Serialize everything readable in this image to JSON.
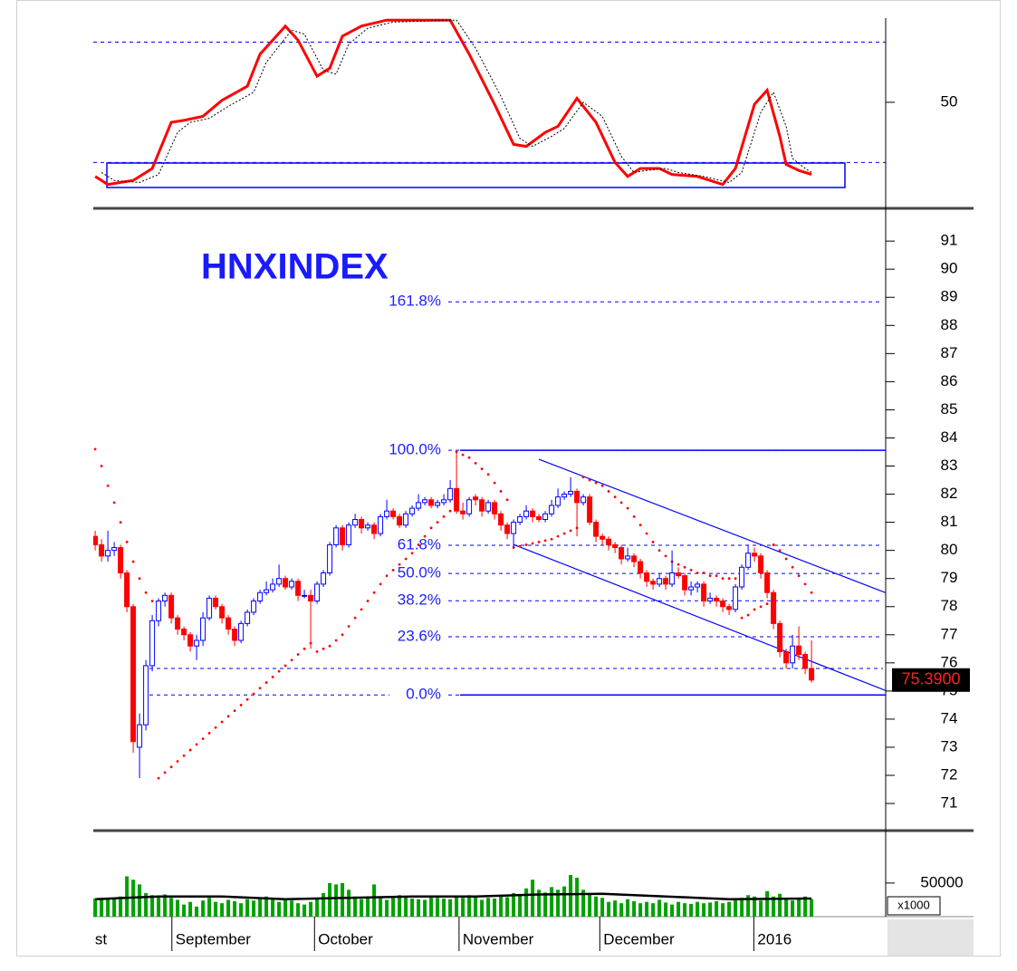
{
  "chart_data": [
    {
      "type": "oscillator",
      "ylim": [
        -2,
        92
      ],
      "yticks": [
        50
      ],
      "reference_lines": [
        80,
        20
      ],
      "reference_color": "#0000ff",
      "series": [
        {
          "color": "#ff0000",
          "x": [
            0,
            2,
            6,
            9,
            12,
            14,
            17,
            20,
            24,
            26,
            30,
            32,
            35,
            37,
            39,
            42,
            46,
            56,
            59,
            63,
            66,
            68,
            71,
            73,
            76,
            79,
            82,
            84,
            86,
            89,
            91,
            95,
            99,
            101,
            104,
            106,
            108,
            109,
            111,
            113
          ],
          "values": [
            13,
            9,
            11,
            17,
            40,
            41,
            43,
            51,
            58,
            74,
            88,
            81,
            63,
            67,
            83,
            88,
            91,
            91,
            74,
            49,
            29,
            28,
            35,
            38,
            52,
            40,
            20,
            13,
            17,
            17,
            14,
            13,
            9,
            17,
            49,
            56,
            33,
            19,
            16,
            14
          ]
        },
        {
          "color": "#000000",
          "dashed": true,
          "x": [
            1,
            3,
            7,
            10,
            13,
            15,
            18,
            21,
            25,
            27,
            31,
            33,
            36,
            38,
            40,
            43,
            47,
            57,
            60,
            64,
            67,
            69,
            72,
            74,
            77,
            80,
            83,
            85,
            87,
            90,
            92,
            96,
            100,
            102,
            105,
            107,
            109,
            110,
            112,
            113
          ],
          "values": [
            15,
            11,
            10,
            14,
            35,
            40,
            42,
            48,
            55,
            70,
            86,
            84,
            66,
            64,
            79,
            87,
            90,
            91,
            77,
            53,
            32,
            28,
            33,
            37,
            50,
            43,
            23,
            15,
            16,
            17,
            15,
            13,
            10,
            15,
            45,
            55,
            38,
            22,
            17,
            15
          ]
        }
      ]
    },
    {
      "type": "candlestick",
      "title": "HNXINDEX",
      "ylim": [
        70.1,
        92.1
      ],
      "yticks": [
        71,
        72,
        73,
        74,
        75,
        76,
        77,
        78,
        79,
        80,
        81,
        82,
        83,
        84,
        85,
        86,
        87,
        88,
        89,
        90,
        91
      ],
      "up_color": "#0000ff",
      "down_color": "#ff0000",
      "ohlc": [
        [
          80.5,
          80.7,
          80.0,
          80.2
        ],
        [
          80.2,
          80.4,
          79.6,
          79.8
        ],
        [
          79.8,
          80.7,
          79.6,
          80.0
        ],
        [
          80.0,
          80.3,
          79.8,
          80.1
        ],
        [
          80.1,
          80.2,
          79.0,
          79.2
        ],
        [
          79.2,
          79.3,
          77.8,
          78.0
        ],
        [
          78.0,
          78.1,
          72.8,
          73.2
        ],
        [
          73.0,
          74.2,
          71.9,
          73.8
        ],
        [
          73.8,
          76.1,
          73.6,
          75.9
        ],
        [
          75.9,
          77.7,
          75.7,
          77.5
        ],
        [
          77.5,
          78.3,
          77.3,
          78.2
        ],
        [
          78.2,
          78.5,
          78.0,
          78.4
        ],
        [
          78.4,
          78.5,
          77.4,
          77.6
        ],
        [
          77.6,
          77.7,
          77.0,
          77.2
        ],
        [
          77.2,
          77.3,
          76.8,
          77.0
        ],
        [
          77.0,
          77.1,
          76.4,
          76.6
        ],
        [
          76.6,
          77.0,
          76.1,
          76.8
        ],
        [
          76.8,
          77.8,
          76.6,
          77.6
        ],
        [
          77.6,
          78.4,
          77.5,
          78.3
        ],
        [
          78.3,
          78.4,
          77.9,
          78.0
        ],
        [
          78.0,
          78.1,
          77.4,
          77.6
        ],
        [
          77.6,
          77.7,
          77.0,
          77.2
        ],
        [
          77.2,
          77.3,
          76.6,
          76.8
        ],
        [
          76.8,
          77.5,
          76.7,
          77.4
        ],
        [
          77.4,
          77.9,
          77.3,
          77.8
        ],
        [
          77.8,
          78.3,
          77.7,
          78.2
        ],
        [
          78.2,
          78.6,
          78.1,
          78.5
        ],
        [
          78.5,
          78.9,
          78.4,
          78.6
        ],
        [
          78.6,
          79.0,
          78.5,
          78.8
        ],
        [
          78.8,
          79.5,
          78.7,
          79.0
        ],
        [
          79.0,
          79.1,
          78.6,
          78.7
        ],
        [
          78.7,
          79.0,
          78.6,
          78.9
        ],
        [
          78.9,
          79.0,
          78.2,
          78.4
        ],
        [
          78.4,
          78.6,
          78.3,
          78.4
        ],
        [
          78.4,
          78.6,
          76.5,
          78.2
        ],
        [
          78.2,
          78.9,
          78.1,
          78.8
        ],
        [
          78.8,
          79.3,
          78.7,
          79.2
        ],
        [
          79.2,
          80.3,
          79.1,
          80.2
        ],
        [
          80.2,
          80.9,
          80.1,
          80.8
        ],
        [
          80.8,
          80.9,
          80.0,
          80.2
        ],
        [
          80.2,
          81.0,
          80.1,
          80.9
        ],
        [
          80.9,
          81.3,
          80.8,
          81.1
        ],
        [
          81.1,
          81.2,
          80.6,
          80.8
        ],
        [
          80.8,
          81.0,
          80.7,
          80.9
        ],
        [
          80.9,
          81.0,
          80.4,
          80.6
        ],
        [
          80.6,
          81.3,
          80.5,
          81.2
        ],
        [
          81.2,
          81.8,
          81.1,
          81.4
        ],
        [
          81.4,
          81.5,
          81.1,
          81.2
        ],
        [
          81.2,
          81.3,
          80.8,
          80.9
        ],
        [
          80.9,
          81.4,
          80.8,
          81.3
        ],
        [
          81.3,
          81.6,
          81.2,
          81.5
        ],
        [
          81.5,
          82.0,
          81.4,
          81.7
        ],
        [
          81.7,
          81.9,
          81.6,
          81.8
        ],
        [
          81.8,
          81.9,
          81.5,
          81.6
        ],
        [
          81.6,
          81.8,
          81.5,
          81.7
        ],
        [
          81.7,
          82.0,
          81.6,
          81.8
        ],
        [
          81.8,
          82.5,
          81.7,
          82.2
        ],
        [
          82.2,
          83.5,
          81.3,
          81.4
        ],
        [
          81.4,
          81.7,
          81.1,
          81.3
        ],
        [
          81.3,
          81.9,
          81.2,
          81.8
        ],
        [
          81.9,
          82.0,
          81.6,
          81.8
        ],
        [
          81.8,
          81.9,
          81.2,
          81.4
        ],
        [
          81.4,
          81.8,
          81.3,
          81.7
        ],
        [
          81.7,
          81.8,
          81.1,
          81.3
        ],
        [
          81.3,
          81.4,
          80.7,
          80.9
        ],
        [
          80.9,
          81.0,
          80.4,
          80.6
        ],
        [
          80.6,
          81.1,
          80.1,
          81.0
        ],
        [
          81.0,
          81.3,
          80.9,
          81.2
        ],
        [
          81.2,
          81.6,
          81.1,
          81.4
        ],
        [
          81.4,
          81.5,
          81.0,
          81.2
        ],
        [
          81.2,
          81.3,
          81.0,
          81.1
        ],
        [
          81.1,
          81.4,
          81.0,
          81.3
        ],
        [
          81.3,
          81.8,
          81.2,
          81.6
        ],
        [
          81.6,
          82.2,
          81.5,
          81.9
        ],
        [
          81.9,
          82.1,
          81.8,
          82.0
        ],
        [
          82.0,
          82.6,
          81.9,
          82.1
        ],
        [
          82.1,
          82.2,
          80.5,
          81.7
        ],
        [
          81.7,
          82.0,
          81.6,
          81.9
        ],
        [
          81.9,
          82.0,
          80.9,
          81.0
        ],
        [
          81.0,
          81.1,
          80.3,
          80.5
        ],
        [
          80.5,
          80.6,
          80.2,
          80.4
        ],
        [
          80.4,
          80.5,
          80.0,
          80.2
        ],
        [
          80.2,
          80.3,
          79.9,
          80.1
        ],
        [
          80.1,
          80.2,
          79.5,
          79.7
        ],
        [
          79.7,
          80.1,
          79.6,
          79.8
        ],
        [
          79.8,
          79.9,
          79.4,
          79.6
        ],
        [
          79.6,
          79.7,
          79.0,
          79.2
        ],
        [
          79.2,
          79.3,
          78.7,
          78.9
        ],
        [
          78.9,
          79.0,
          78.6,
          78.8
        ],
        [
          78.8,
          79.2,
          78.7,
          79.0
        ],
        [
          79.0,
          79.1,
          78.6,
          78.8
        ],
        [
          78.8,
          80.0,
          78.7,
          79.2
        ],
        [
          79.2,
          79.4,
          79.0,
          79.1
        ],
        [
          79.1,
          79.2,
          78.4,
          78.6
        ],
        [
          78.6,
          78.9,
          78.4,
          78.7
        ],
        [
          78.7,
          78.9,
          78.5,
          78.8
        ],
        [
          78.8,
          78.9,
          78.0,
          78.2
        ],
        [
          78.2,
          78.5,
          78.1,
          78.3
        ],
        [
          78.3,
          78.4,
          78.0,
          78.2
        ],
        [
          78.2,
          78.3,
          77.8,
          78.0
        ],
        [
          78.0,
          78.1,
          77.7,
          77.9
        ],
        [
          77.9,
          78.8,
          77.8,
          78.7
        ],
        [
          78.7,
          79.5,
          78.6,
          79.4
        ],
        [
          79.4,
          80.2,
          79.3,
          79.9
        ],
        [
          79.9,
          80.1,
          79.6,
          79.8
        ],
        [
          79.8,
          79.9,
          79.0,
          79.2
        ],
        [
          79.2,
          79.3,
          78.3,
          78.5
        ],
        [
          78.5,
          78.6,
          77.2,
          77.4
        ],
        [
          77.4,
          77.5,
          76.2,
          76.4
        ],
        [
          76.4,
          76.5,
          75.8,
          76.0
        ],
        [
          76.0,
          77.0,
          75.8,
          76.6
        ],
        [
          76.6,
          77.3,
          76.1,
          76.3
        ],
        [
          76.3,
          76.4,
          75.6,
          75.8
        ],
        [
          75.8,
          76.8,
          75.3,
          75.39
        ]
      ],
      "sar": {
        "color": "#ff0000",
        "values": [
          83.6,
          83.0,
          82.3,
          81.7,
          81.0,
          80.3,
          79.6,
          79.0,
          78.5,
          78.2,
          71.9,
          72.1,
          72.3,
          72.5,
          72.7,
          72.9,
          73.1,
          73.3,
          73.5,
          73.7,
          73.9,
          74.1,
          74.3,
          74.5,
          74.7,
          74.9,
          75.1,
          75.3,
          75.5,
          75.7,
          75.9,
          76.1,
          76.3,
          76.5,
          76.7,
          76.4,
          76.5,
          76.6,
          76.8,
          77.0,
          77.3,
          77.6,
          77.9,
          78.2,
          78.5,
          78.8,
          79.1,
          79.3,
          79.5,
          79.7,
          79.9,
          80.2,
          80.5,
          80.8,
          81.0,
          81.2,
          81.4,
          83.5,
          83.4,
          83.3,
          83.1,
          82.9,
          82.7,
          82.4,
          82.1,
          81.8,
          80.1,
          80.15,
          80.2,
          80.25,
          80.3,
          80.35,
          80.4,
          80.5,
          80.6,
          80.7,
          80.8,
          82.6,
          82.5,
          82.4,
          82.3,
          82.1,
          81.9,
          81.7,
          81.5,
          81.2,
          80.9,
          80.6,
          80.3,
          80.0,
          79.8,
          79.6,
          79.5,
          79.4,
          79.3,
          79.2,
          79.2,
          79.1,
          79.1,
          79.0,
          79.0,
          79.0,
          77.6,
          77.7,
          77.9,
          78.0,
          78.1,
          80.2,
          80.0,
          79.7,
          79.4,
          79.1,
          78.8,
          78.5
        ]
      },
      "fibonacci": {
        "color": "#0000ff",
        "levels": [
          88.84,
          83.56,
          80.18,
          79.18,
          78.21,
          76.93,
          74.86
        ],
        "labels": [
          "161.8%",
          "100.0%",
          "61.8%",
          "50.0%",
          "38.2%",
          "23.6%",
          "0.0%"
        ]
      },
      "support_line": 75.8,
      "channel": [
        {
          "x": [
            70,
            125
          ],
          "values": [
            83.24,
            78.47
          ]
        },
        {
          "x": [
            66,
            125
          ],
          "values": [
            80.21,
            74.99
          ]
        }
      ],
      "last_price": {
        "value": 75.39,
        "label": "75.3900"
      }
    },
    {
      "type": "bar",
      "ylim": [
        0,
        124000
      ],
      "yticks": [
        50000
      ],
      "unit_label": "x1000",
      "color": "#00a000",
      "values": [
        27000,
        26000,
        28000,
        27000,
        30000,
        60000,
        55000,
        48000,
        35000,
        32000,
        30000,
        33000,
        28000,
        25000,
        18000,
        22000,
        15000,
        24000,
        28000,
        22000,
        20000,
        25000,
        23000,
        20000,
        26000,
        24000,
        28000,
        30000,
        25000,
        22000,
        26000,
        24000,
        20000,
        18000,
        22000,
        28000,
        35000,
        50000,
        48000,
        50000,
        40000,
        30000,
        26000,
        28000,
        48000,
        30000,
        25000,
        28000,
        32000,
        30000,
        27000,
        26000,
        25000,
        30000,
        28000,
        27000,
        26000,
        30000,
        28000,
        32000,
        30000,
        25000,
        28000,
        27000,
        30000,
        29000,
        35000,
        32000,
        42000,
        55000,
        40000,
        36000,
        44000,
        40000,
        45000,
        62000,
        58000,
        40000,
        35000,
        30000,
        28000,
        22000,
        24000,
        20000,
        26000,
        23000,
        20000,
        22000,
        20000,
        25000,
        21000,
        18000,
        22000,
        20000,
        19000,
        22000,
        20000,
        21000,
        23000,
        20000,
        22000,
        25000,
        28000,
        32000,
        30000,
        24000,
        38000,
        30000,
        34000,
        28000,
        24000,
        26000,
        30000,
        26000
      ],
      "ma": {
        "color": "#000000",
        "x": [
          0,
          10,
          20,
          30,
          40,
          50,
          60,
          70,
          80,
          90,
          100,
          113
        ],
        "values": [
          26000,
          30000,
          30000,
          26000,
          28000,
          30000,
          30000,
          33000,
          34000,
          30000,
          26000,
          27000
        ]
      }
    }
  ],
  "x_axis": {
    "xlim": [
      -0.3,
      124.7
    ],
    "xticks": [
      {
        "value": -0.6,
        "label": "st"
      },
      {
        "value": 12.1,
        "label": "September"
      },
      {
        "value": 34.6,
        "label": "October"
      },
      {
        "value": 57.4,
        "label": "November"
      },
      {
        "value": 79.6,
        "label": "December"
      },
      {
        "value": 103.9,
        "label": "2016"
      }
    ]
  }
}
